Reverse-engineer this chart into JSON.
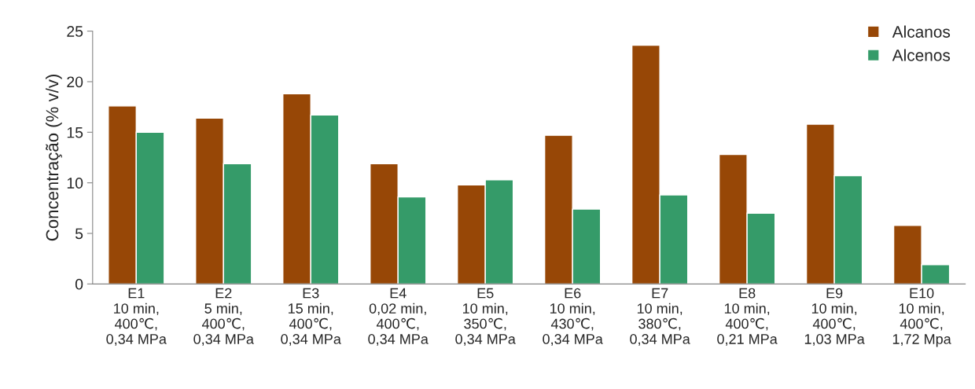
{
  "chart_data": {
    "type": "bar",
    "ylabel": "Concentração (% v/v)",
    "categories": [
      "E1\n10 min,\n400℃,\n0,34 MPa",
      "E2\n5 min,\n400℃,\n0,34 MPa",
      "E3\n15 min,\n400℃,\n0,34 MPa",
      "E4\n0,02 min,\n400℃,\n0,34 MPa",
      "E5\n10 min,\n350℃,\n0,34 MPa",
      "E6\n10 min,\n430℃,\n0,34 MPa",
      "E7\n10 min,\n380℃,\n0,34 MPa",
      "E8\n10 min,\n400℃,\n0,21 MPa",
      "E9\n10 min,\n400℃,\n1,03 MPa",
      "E10\n10 min,\n400℃,\n1,72 Mpa"
    ],
    "series": [
      {
        "name": "Alcanos",
        "color": "#974706",
        "values": [
          17.6,
          16.4,
          18.8,
          11.9,
          9.8,
          14.7,
          23.6,
          12.8,
          15.8,
          5.8
        ]
      },
      {
        "name": "Alcenos",
        "color": "#359b69",
        "values": [
          15.0,
          11.9,
          16.7,
          8.6,
          10.3,
          7.4,
          8.8,
          7.0,
          10.7,
          1.9
        ]
      }
    ],
    "ylim": [
      0,
      25
    ],
    "yticks": [
      0,
      5,
      10,
      15,
      20,
      25
    ],
    "grid": false,
    "legend": "top right"
  }
}
